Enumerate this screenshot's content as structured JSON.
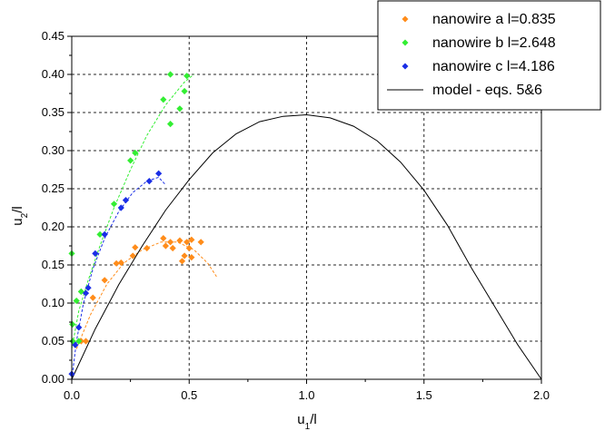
{
  "chart_data": {
    "type": "scatter",
    "xlabel_main": "u",
    "xlabel_sub": "1",
    "xlabel_rest": "/l",
    "ylabel_main": "u",
    "ylabel_sub": "2",
    "ylabel_rest": "/l",
    "xlim": [
      0,
      2.0
    ],
    "ylim": [
      0,
      0.45
    ],
    "x_ticks": [
      "0.0",
      "0.5",
      "1.0",
      "1.5",
      "2.0"
    ],
    "y_ticks": [
      "0.00",
      "0.05",
      "0.10",
      "0.15",
      "0.20",
      "0.25",
      "0.30",
      "0.35",
      "0.40",
      "0.45"
    ],
    "grid": "dashed, major ticks",
    "legend_position": "top-right",
    "series": [
      {
        "name": "nanowire a l=0.835",
        "color": "#ff8c1a",
        "marker": "diamond",
        "points": [
          [
            0.04,
            0.05
          ],
          [
            0.06,
            0.05
          ],
          [
            0.09,
            0.107
          ],
          [
            0.14,
            0.13
          ],
          [
            0.19,
            0.152
          ],
          [
            0.21,
            0.153
          ],
          [
            0.26,
            0.162
          ],
          [
            0.27,
            0.173
          ],
          [
            0.32,
            0.172
          ],
          [
            0.39,
            0.185
          ],
          [
            0.4,
            0.175
          ],
          [
            0.42,
            0.18
          ],
          [
            0.43,
            0.172
          ],
          [
            0.46,
            0.182
          ],
          [
            0.47,
            0.155
          ],
          [
            0.48,
            0.162
          ],
          [
            0.49,
            0.18
          ],
          [
            0.5,
            0.172
          ],
          [
            0.51,
            0.183
          ],
          [
            0.51,
            0.16
          ],
          [
            0.55,
            0.18
          ]
        ],
        "trend": [
          [
            0.02,
            0.04
          ],
          [
            0.08,
            0.085
          ],
          [
            0.15,
            0.125
          ],
          [
            0.22,
            0.152
          ],
          [
            0.3,
            0.17
          ],
          [
            0.38,
            0.18
          ],
          [
            0.45,
            0.18
          ],
          [
            0.52,
            0.17
          ],
          [
            0.58,
            0.152
          ],
          [
            0.62,
            0.133
          ]
        ]
      },
      {
        "name": "nanowire b l=2.648",
        "color": "#33ee33",
        "marker": "diamond",
        "points": [
          [
            0.0,
            0.165
          ],
          [
            0.003,
            0.072
          ],
          [
            0.004,
            0.05
          ],
          [
            0.02,
            0.103
          ],
          [
            0.03,
            0.05
          ],
          [
            0.04,
            0.115
          ],
          [
            0.12,
            0.19
          ],
          [
            0.18,
            0.23
          ],
          [
            0.25,
            0.287
          ],
          [
            0.27,
            0.297
          ],
          [
            0.39,
            0.367
          ],
          [
            0.42,
            0.4
          ],
          [
            0.42,
            0.335
          ],
          [
            0.46,
            0.355
          ],
          [
            0.48,
            0.378
          ],
          [
            0.49,
            0.398
          ]
        ],
        "trend": [
          [
            0.0,
            0.04
          ],
          [
            0.03,
            0.09
          ],
          [
            0.07,
            0.13
          ],
          [
            0.12,
            0.175
          ],
          [
            0.18,
            0.225
          ],
          [
            0.25,
            0.275
          ],
          [
            0.32,
            0.32
          ],
          [
            0.4,
            0.36
          ],
          [
            0.48,
            0.39
          ],
          [
            0.52,
            0.4
          ]
        ]
      },
      {
        "name": "nanowire c l=4.186",
        "color": "#1a2ee6",
        "marker": "diamond",
        "points": [
          [
            0.0,
            0.007
          ],
          [
            0.015,
            0.045
          ],
          [
            0.03,
            0.068
          ],
          [
            0.06,
            0.113
          ],
          [
            0.07,
            0.12
          ],
          [
            0.1,
            0.165
          ],
          [
            0.14,
            0.19
          ],
          [
            0.21,
            0.225
          ],
          [
            0.23,
            0.235
          ],
          [
            0.33,
            0.26
          ],
          [
            0.37,
            0.27
          ]
        ],
        "trend": [
          [
            0.0,
            0.0
          ],
          [
            0.02,
            0.05
          ],
          [
            0.05,
            0.1
          ],
          [
            0.09,
            0.145
          ],
          [
            0.14,
            0.185
          ],
          [
            0.2,
            0.22
          ],
          [
            0.26,
            0.245
          ],
          [
            0.32,
            0.26
          ],
          [
            0.37,
            0.265
          ],
          [
            0.4,
            0.255
          ]
        ]
      },
      {
        "name": "model - eqs. 5&6",
        "color": "#000000",
        "marker": "line",
        "points": [
          [
            0.0,
            0.0
          ],
          [
            0.1,
            0.066
          ],
          [
            0.2,
            0.124
          ],
          [
            0.3,
            0.175
          ],
          [
            0.4,
            0.222
          ],
          [
            0.5,
            0.262
          ],
          [
            0.6,
            0.297
          ],
          [
            0.7,
            0.322
          ],
          [
            0.8,
            0.338
          ],
          [
            0.9,
            0.345
          ],
          [
            1.0,
            0.347
          ],
          [
            1.1,
            0.343
          ],
          [
            1.2,
            0.332
          ],
          [
            1.3,
            0.313
          ],
          [
            1.4,
            0.285
          ],
          [
            1.5,
            0.248
          ],
          [
            1.6,
            0.202
          ],
          [
            1.7,
            0.147
          ],
          [
            1.8,
            0.096
          ],
          [
            1.9,
            0.045
          ],
          [
            2.0,
            0.0
          ]
        ]
      }
    ]
  }
}
